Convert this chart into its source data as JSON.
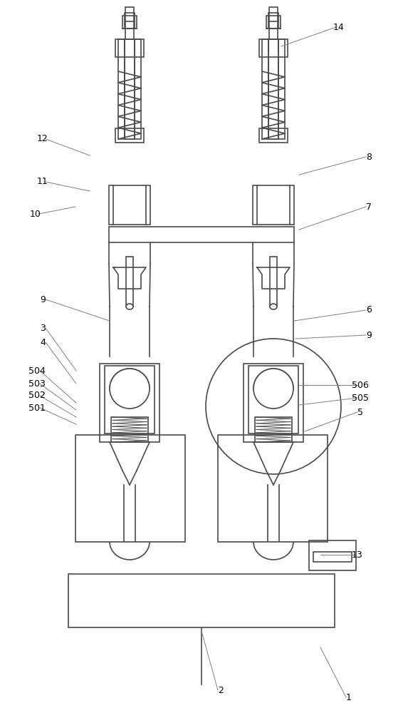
{
  "bg_color": "#ffffff",
  "line_color": "#4a4a4a",
  "label_color": "#000000",
  "lw": 1.2,
  "tlw": 0.7,
  "spring_lw": 1.0,
  "fs": 9
}
